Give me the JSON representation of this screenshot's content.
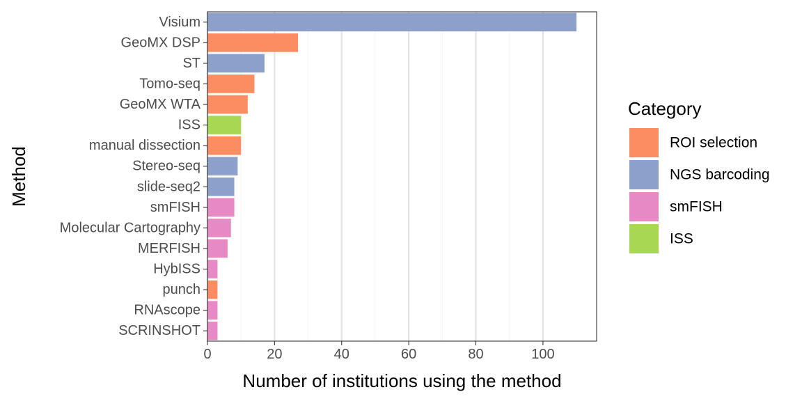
{
  "chart_data": {
    "type": "bar",
    "orientation": "horizontal",
    "xlabel": "Number of institutions using the method",
    "ylabel": "Method",
    "xlim": [
      0,
      116
    ],
    "x_ticks": [
      0,
      20,
      40,
      60,
      80,
      100
    ],
    "grid": "vertical major gridlines",
    "legend_position": "right",
    "legend": {
      "title": "Category",
      "items": [
        {
          "label": "ROI selection",
          "color": "#FC8D62"
        },
        {
          "label": "NGS barcoding",
          "color": "#8DA0CB"
        },
        {
          "label": "smFISH",
          "color": "#E78AC3"
        },
        {
          "label": "ISS",
          "color": "#A6D854"
        }
      ]
    },
    "bars": [
      {
        "category": "Visium",
        "value": 110,
        "group": "NGS barcoding"
      },
      {
        "category": "GeoMX DSP",
        "value": 27,
        "group": "ROI selection"
      },
      {
        "category": "ST",
        "value": 17,
        "group": "NGS barcoding"
      },
      {
        "category": "Tomo-seq",
        "value": 14,
        "group": "ROI selection"
      },
      {
        "category": "GeoMX WTA",
        "value": 12,
        "group": "ROI selection"
      },
      {
        "category": "ISS",
        "value": 10,
        "group": "ISS"
      },
      {
        "category": "manual dissection",
        "value": 10,
        "group": "ROI selection"
      },
      {
        "category": "Stereo-seq",
        "value": 9,
        "group": "NGS barcoding"
      },
      {
        "category": "slide-seq2",
        "value": 8,
        "group": "NGS barcoding"
      },
      {
        "category": "smFISH",
        "value": 8,
        "group": "smFISH"
      },
      {
        "category": "Molecular Cartography",
        "value": 7,
        "group": "smFISH"
      },
      {
        "category": "MERFISH",
        "value": 6,
        "group": "smFISH"
      },
      {
        "category": "HybISS",
        "value": 3,
        "group": "smFISH"
      },
      {
        "category": "punch",
        "value": 3,
        "group": "ROI selection"
      },
      {
        "category": "RNAscope",
        "value": 3,
        "group": "smFISH"
      },
      {
        "category": "SCRINSHOT",
        "value": 3,
        "group": "smFISH"
      }
    ]
  }
}
